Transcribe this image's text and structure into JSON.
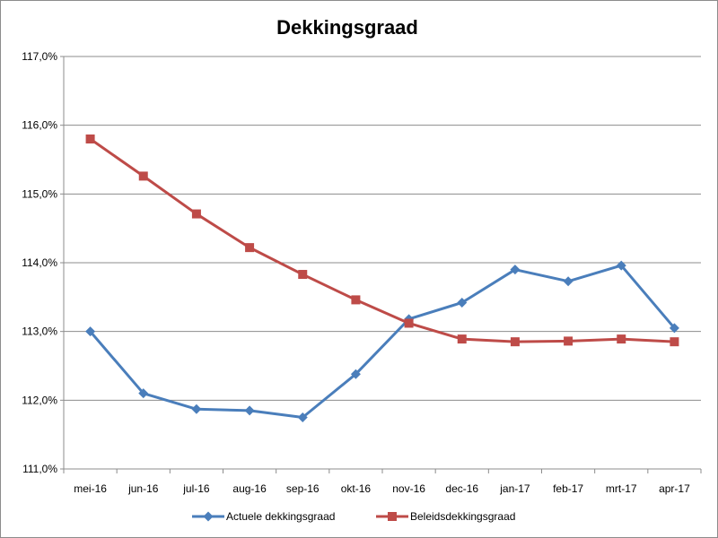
{
  "chart_data": {
    "type": "line",
    "title": "Dekkingsgraad",
    "xlabel": "",
    "ylabel": "",
    "categories": [
      "mei-16",
      "jun-16",
      "jul-16",
      "aug-16",
      "sep-16",
      "okt-16",
      "nov-16",
      "dec-16",
      "jan-17",
      "feb-17",
      "mrt-17",
      "apr-17"
    ],
    "ylim": [
      111.0,
      117.0
    ],
    "ytick_step": 1.0,
    "ytick_labels": [
      "111,0%",
      "112,0%",
      "113,0%",
      "114,0%",
      "115,0%",
      "116,0%",
      "117,0%"
    ],
    "grid": "horizontal",
    "legend_position": "bottom",
    "series": [
      {
        "name": "Actuele dekkingsgraad",
        "color": "#4a7ebb",
        "marker": "diamond",
        "values": [
          113.0,
          112.1,
          111.87,
          111.85,
          111.75,
          112.38,
          113.18,
          113.42,
          113.9,
          113.73,
          113.96,
          113.05
        ]
      },
      {
        "name": "Beleidsdekkingsgraad",
        "color": "#be4b48",
        "marker": "square",
        "values": [
          115.8,
          115.26,
          114.71,
          114.22,
          113.83,
          113.46,
          113.12,
          112.89,
          112.85,
          112.86,
          112.89,
          112.85
        ]
      }
    ]
  }
}
